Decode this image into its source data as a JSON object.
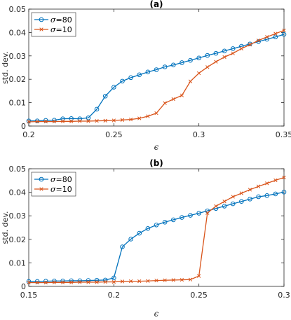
{
  "chart_data": [
    {
      "type": "line",
      "title": "(a)",
      "xlabel": "ϵ",
      "ylabel": "std. dev.",
      "xlim": [
        0.2,
        0.35
      ],
      "ylim": [
        0,
        0.05
      ],
      "xticks": [
        "0.2",
        "0.25",
        "0.3",
        "0.35"
      ],
      "yticks": [
        "0",
        "0.01",
        "0.02",
        "0.03",
        "0.04",
        "0.05"
      ],
      "grid": false,
      "legend_position": "top-left",
      "series": [
        {
          "name": "σ=80",
          "legend_symbol": "σ",
          "legend_value": "=80",
          "color": "#0072BD",
          "marker": "circle",
          "x": [
            0.2,
            0.205,
            0.21,
            0.215,
            0.22,
            0.225,
            0.23,
            0.235,
            0.24,
            0.245,
            0.25,
            0.255,
            0.26,
            0.265,
            0.27,
            0.275,
            0.28,
            0.285,
            0.29,
            0.295,
            0.3,
            0.305,
            0.31,
            0.315,
            0.32,
            0.325,
            0.33,
            0.335,
            0.34,
            0.345,
            0.35
          ],
          "y": [
            0.0022,
            0.0022,
            0.0024,
            0.0025,
            0.0031,
            0.0032,
            0.0031,
            0.0035,
            0.0072,
            0.0128,
            0.0166,
            0.0192,
            0.0207,
            0.0219,
            0.0231,
            0.0241,
            0.0253,
            0.0261,
            0.0271,
            0.0281,
            0.0291,
            0.0302,
            0.0311,
            0.0321,
            0.0331,
            0.0341,
            0.0351,
            0.0361,
            0.0371,
            0.0381,
            0.0392
          ]
        },
        {
          "name": "σ=10",
          "legend_symbol": "σ",
          "legend_value": "=10",
          "color": "#D95319",
          "marker": "x",
          "x": [
            0.2,
            0.205,
            0.21,
            0.215,
            0.22,
            0.225,
            0.23,
            0.235,
            0.24,
            0.245,
            0.25,
            0.255,
            0.26,
            0.265,
            0.27,
            0.275,
            0.28,
            0.285,
            0.29,
            0.295,
            0.3,
            0.305,
            0.31,
            0.315,
            0.32,
            0.325,
            0.33,
            0.335,
            0.34,
            0.345,
            0.35
          ],
          "y": [
            0.0018,
            0.0019,
            0.0019,
            0.0019,
            0.002,
            0.002,
            0.0021,
            0.0021,
            0.0022,
            0.0023,
            0.0024,
            0.0026,
            0.0028,
            0.0033,
            0.0042,
            0.0055,
            0.0098,
            0.0115,
            0.0131,
            0.0191,
            0.0226,
            0.0252,
            0.0275,
            0.0295,
            0.0311,
            0.0331,
            0.0348,
            0.0366,
            0.0381,
            0.0395,
            0.0409
          ]
        }
      ]
    },
    {
      "type": "line",
      "title": "(b)",
      "xlabel": "ϵ",
      "ylabel": "std. dev.",
      "xlim": [
        0.15,
        0.3
      ],
      "ylim": [
        0,
        0.05
      ],
      "xticks": [
        "0.15",
        "0.2",
        "0.25",
        "0.3"
      ],
      "yticks": [
        "0",
        "0.01",
        "0.02",
        "0.03",
        "0.04",
        "0.05"
      ],
      "grid": false,
      "legend_position": "top-left",
      "series": [
        {
          "name": "σ=80",
          "legend_symbol": "σ",
          "legend_value": "=80",
          "color": "#0072BD",
          "marker": "circle",
          "x": [
            0.15,
            0.155,
            0.16,
            0.165,
            0.17,
            0.175,
            0.18,
            0.185,
            0.19,
            0.195,
            0.2,
            0.205,
            0.21,
            0.215,
            0.22,
            0.225,
            0.23,
            0.235,
            0.24,
            0.245,
            0.25,
            0.255,
            0.26,
            0.265,
            0.27,
            0.275,
            0.28,
            0.285,
            0.29,
            0.295,
            0.3
          ],
          "y": [
            0.0021,
            0.0021,
            0.0022,
            0.0023,
            0.0023,
            0.0024,
            0.0024,
            0.0025,
            0.0026,
            0.0027,
            0.0036,
            0.0168,
            0.0201,
            0.0226,
            0.0246,
            0.0261,
            0.0273,
            0.0283,
            0.0293,
            0.0302,
            0.0311,
            0.0321,
            0.0331,
            0.0341,
            0.0351,
            0.0361,
            0.0371,
            0.0381,
            0.0386,
            0.0393,
            0.0401
          ]
        },
        {
          "name": "σ=10",
          "legend_symbol": "σ",
          "legend_value": "=10",
          "color": "#D95319",
          "marker": "x",
          "x": [
            0.15,
            0.155,
            0.16,
            0.165,
            0.17,
            0.175,
            0.18,
            0.185,
            0.19,
            0.195,
            0.2,
            0.205,
            0.21,
            0.215,
            0.22,
            0.225,
            0.23,
            0.235,
            0.24,
            0.245,
            0.25,
            0.255,
            0.26,
            0.265,
            0.27,
            0.275,
            0.28,
            0.285,
            0.29,
            0.295,
            0.3
          ],
          "y": [
            0.0016,
            0.0016,
            0.0016,
            0.0017,
            0.0017,
            0.0017,
            0.0018,
            0.0018,
            0.0018,
            0.0019,
            0.0019,
            0.0021,
            0.0022,
            0.0022,
            0.0023,
            0.0025,
            0.0026,
            0.0027,
            0.0028,
            0.0029,
            0.0044,
            0.0312,
            0.0341,
            0.0361,
            0.0381,
            0.0396,
            0.0411,
            0.0425,
            0.0438,
            0.0451,
            0.0463
          ]
        }
      ]
    }
  ]
}
